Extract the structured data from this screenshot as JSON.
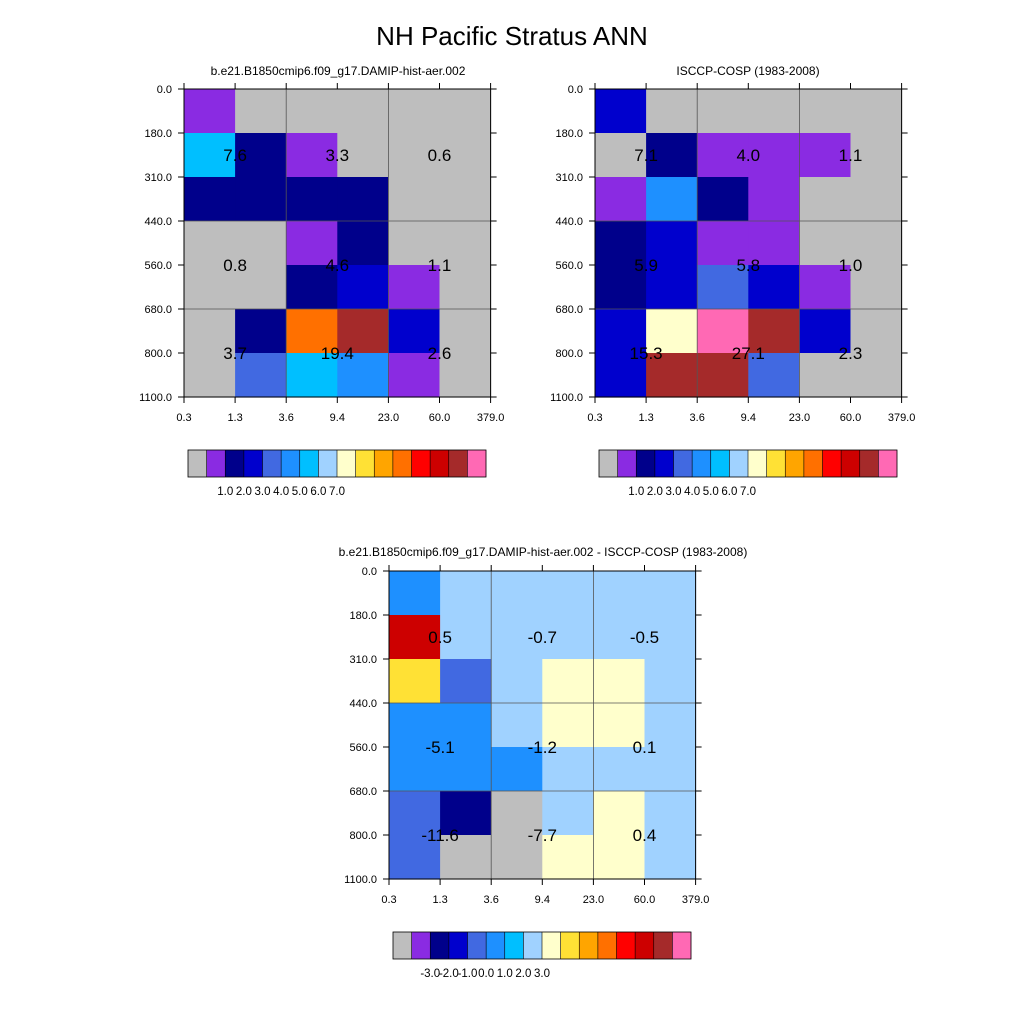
{
  "title": "NH Pacific Stratus ANN",
  "colors": {
    "palette": [
      "#bebebe",
      "#8a2be2",
      "#00008b",
      "#0000cd",
      "#4169e1",
      "#1e90ff",
      "#00bfff",
      "#a0d2ff",
      "#ffffcc",
      "#ffe135",
      "#ffa500",
      "#ff7000",
      "#ff0000",
      "#cd0000",
      "#a52a2a",
      "#ff69b4"
    ]
  },
  "chart_data": [
    {
      "type": "heatmap",
      "title": "b.e21.B1850cmip6.f09_g17.DAMIP-hist-aer.002",
      "x_ticks": [
        "0.3",
        "1.3",
        "3.6",
        "9.4",
        "23.0",
        "60.0",
        "379.0"
      ],
      "y_ticks": [
        "0.0",
        "180.0",
        "310.0",
        "440.0",
        "560.0",
        "680.0",
        "800.0",
        "1100.0"
      ],
      "cell_colors": [
        [
          1,
          0,
          0,
          0,
          0,
          0
        ],
        [
          6,
          2,
          1,
          0,
          0,
          0
        ],
        [
          2,
          2,
          2,
          2,
          0,
          0
        ],
        [
          0,
          0,
          1,
          2,
          0,
          0
        ],
        [
          0,
          0,
          2,
          3,
          1,
          0
        ],
        [
          0,
          2,
          11,
          14,
          3,
          0
        ],
        [
          0,
          4,
          6,
          5,
          1,
          0
        ]
      ],
      "box_values": [
        [
          "7.6",
          "3.3",
          "0.6"
        ],
        [
          "0.8",
          "4.6",
          "1.1"
        ],
        [
          "3.7",
          "19.4",
          "2.6"
        ]
      ],
      "colorbar_labels": [
        "1.0",
        "2.0",
        "3.0",
        "4.0",
        "5.0",
        "6.0",
        "7.0"
      ]
    },
    {
      "type": "heatmap",
      "title": "ISCCP-COSP (1983-2008)",
      "x_ticks": [
        "0.3",
        "1.3",
        "3.6",
        "9.4",
        "23.0",
        "60.0",
        "379.0"
      ],
      "y_ticks": [
        "0.0",
        "180.0",
        "310.0",
        "440.0",
        "560.0",
        "680.0",
        "800.0",
        "1100.0"
      ],
      "cell_colors": [
        [
          3,
          0,
          0,
          0,
          0,
          0
        ],
        [
          0,
          2,
          1,
          1,
          1,
          0
        ],
        [
          1,
          5,
          2,
          1,
          0,
          0
        ],
        [
          2,
          3,
          1,
          1,
          0,
          0
        ],
        [
          2,
          3,
          4,
          3,
          1,
          0
        ],
        [
          3,
          8,
          15,
          14,
          3,
          0
        ],
        [
          3,
          14,
          14,
          4,
          0,
          0
        ]
      ],
      "box_values": [
        [
          "7.1",
          "4.0",
          "1.1"
        ],
        [
          "5.9",
          "5.8",
          "1.0"
        ],
        [
          "15.3",
          "27.1",
          "2.3"
        ]
      ],
      "colorbar_labels": [
        "1.0",
        "2.0",
        "3.0",
        "4.0",
        "5.0",
        "6.0",
        "7.0"
      ]
    },
    {
      "type": "heatmap",
      "title": "b.e21.B1850cmip6.f09_g17.DAMIP-hist-aer.002 - ISCCP-COSP (1983-2008)",
      "x_ticks": [
        "0.3",
        "1.3",
        "3.6",
        "9.4",
        "23.0",
        "60.0",
        "379.0"
      ],
      "y_ticks": [
        "0.0",
        "180.0",
        "310.0",
        "440.0",
        "560.0",
        "680.0",
        "800.0",
        "1100.0"
      ],
      "cell_colors": [
        [
          5,
          7,
          7,
          7,
          7,
          7
        ],
        [
          13,
          7,
          7,
          7,
          7,
          7
        ],
        [
          9,
          4,
          7,
          8,
          8,
          7
        ],
        [
          5,
          5,
          7,
          8,
          8,
          7
        ],
        [
          5,
          5,
          5,
          7,
          7,
          7
        ],
        [
          4,
          2,
          0,
          7,
          8,
          7
        ],
        [
          4,
          0,
          0,
          8,
          8,
          7
        ]
      ],
      "box_values": [
        [
          "0.5",
          "-0.7",
          "-0.5"
        ],
        [
          "-5.1",
          "-1.2",
          "0.1"
        ],
        [
          "-11.6",
          "-7.7",
          "0.4"
        ]
      ],
      "colorbar_labels": [
        "-3.0",
        "-2.0",
        "-1.0",
        "0.0",
        "1.0",
        "2.0",
        "3.0"
      ]
    }
  ]
}
